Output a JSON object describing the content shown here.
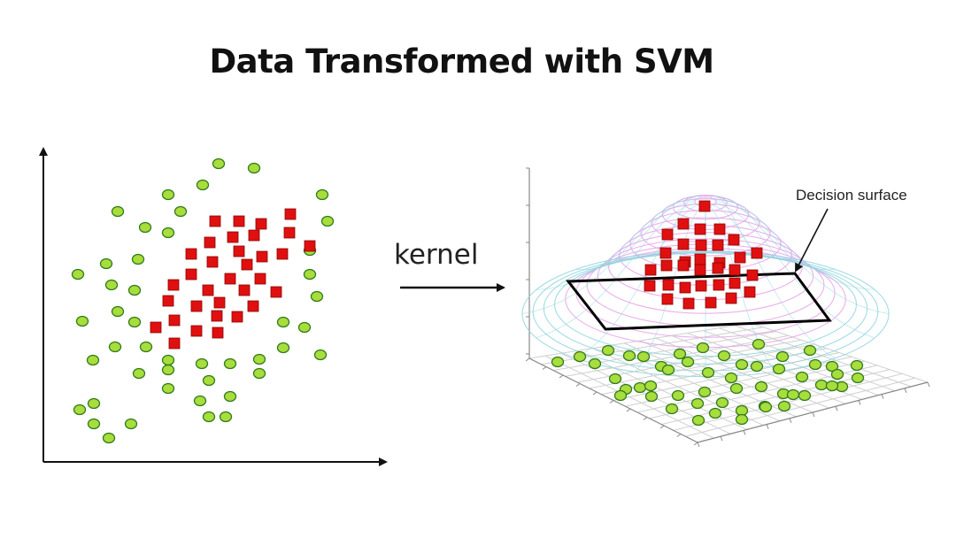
{
  "title": "Data Transformed with SVM",
  "kernel_label": "kernel",
  "decision_surface_label": "Decision surface",
  "colors": {
    "class_a_fill": "#a8dd3c",
    "class_a_stroke": "#2f7a1a",
    "class_b_fill": "#e01010",
    "class_b_stroke": "#8a0000",
    "axis": "#111111",
    "mesh_pink": "#e6a3e8",
    "mesh_cyan": "#8fd6df",
    "grid": "#cfcfcf"
  },
  "icons": [
    "arrow-right-icon",
    "axis-arrow-icon"
  ]
}
